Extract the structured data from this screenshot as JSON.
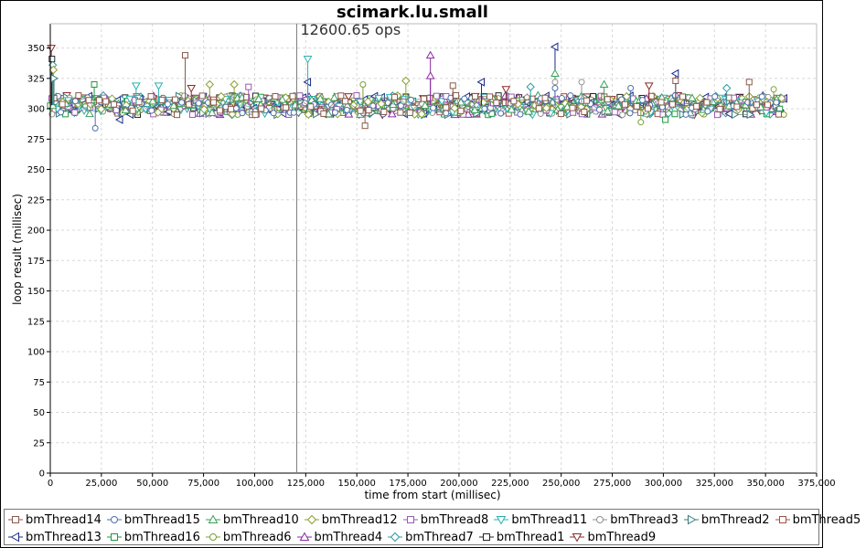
{
  "chart_data": {
    "type": "scatter",
    "title": "scimark.lu.small",
    "annotation": "12600.65 ops",
    "marker_line_x": 120600,
    "xlabel": "time from start (millisec)",
    "ylabel": "loop result (millisec)",
    "xlim": [
      0,
      375000
    ],
    "ylim": [
      0,
      370
    ],
    "x_ticks": [
      "0",
      "25,000",
      "50,000",
      "75,000",
      "100,000",
      "125,000",
      "150,000",
      "175,000",
      "200,000",
      "225,000",
      "250,000",
      "275,000",
      "300,000",
      "325,000",
      "350,000",
      "375,000"
    ],
    "y_ticks": [
      "0",
      "25",
      "50",
      "75",
      "100",
      "125",
      "150",
      "175",
      "200",
      "225",
      "250",
      "275",
      "300",
      "325",
      "350"
    ],
    "grid": true,
    "legend_position": "bottom",
    "x_range_data": [
      0,
      360000
    ],
    "typical_y": 303,
    "series": [
      {
        "name": "bmThread14",
        "marker": "square",
        "color": "#8b5a4a"
      },
      {
        "name": "bmThread15",
        "marker": "circle",
        "color": "#4a6fb0"
      },
      {
        "name": "bmThread10",
        "marker": "triangle-up",
        "color": "#3aa05a"
      },
      {
        "name": "bmThread12",
        "marker": "diamond",
        "color": "#8aa030"
      },
      {
        "name": "bmThread8",
        "marker": "square",
        "color": "#9a5ab0"
      },
      {
        "name": "bmThread11",
        "marker": "triangle-down",
        "color": "#2ab0b0"
      },
      {
        "name": "bmThread3",
        "marker": "circle",
        "color": "#909090"
      },
      {
        "name": "bmThread2",
        "marker": "triangle-right",
        "color": "#3a7a7a"
      },
      {
        "name": "bmThread5",
        "marker": "square",
        "color": "#a0504a"
      },
      {
        "name": "bmThread13",
        "marker": "triangle-left",
        "color": "#1a2a8a"
      },
      {
        "name": "bmThread16",
        "marker": "square",
        "color": "#1a9a3a"
      },
      {
        "name": "bmThread6",
        "marker": "circle",
        "color": "#7aa030"
      },
      {
        "name": "bmThread4",
        "marker": "triangle-up",
        "color": "#8a2aa0"
      },
      {
        "name": "bmThread7",
        "marker": "diamond",
        "color": "#2a9aa0"
      },
      {
        "name": "bmThread1",
        "marker": "square",
        "color": "#222222"
      },
      {
        "name": "bmThread9",
        "marker": "triangle-down",
        "color": "#8a2a2a"
      }
    ],
    "outliers": [
      {
        "series": "bmThread9",
        "x": 500,
        "y": 350
      },
      {
        "series": "bmThread1",
        "x": 800,
        "y": 341
      },
      {
        "series": "bmThread7",
        "x": 1200,
        "y": 336
      },
      {
        "series": "bmThread12",
        "x": 1500,
        "y": 332
      },
      {
        "series": "bmThread2",
        "x": 1800,
        "y": 325
      },
      {
        "series": "bmThread16",
        "x": 21500,
        "y": 320
      },
      {
        "series": "bmThread15",
        "x": 22000,
        "y": 284
      },
      {
        "series": "bmThread13",
        "x": 34000,
        "y": 291
      },
      {
        "series": "bmThread11",
        "x": 42000,
        "y": 319
      },
      {
        "series": "bmThread11",
        "x": 53000,
        "y": 319
      },
      {
        "series": "bmThread14",
        "x": 66000,
        "y": 344
      },
      {
        "series": "bmThread9",
        "x": 69000,
        "y": 317
      },
      {
        "series": "bmThread12",
        "x": 78000,
        "y": 320
      },
      {
        "series": "bmThread12",
        "x": 90000,
        "y": 320
      },
      {
        "series": "bmThread8",
        "x": 97000,
        "y": 318
      },
      {
        "series": "bmThread13",
        "x": 126000,
        "y": 322
      },
      {
        "series": "bmThread11",
        "x": 126000,
        "y": 341
      },
      {
        "series": "bmThread6",
        "x": 153000,
        "y": 320
      },
      {
        "series": "bmThread14",
        "x": 154000,
        "y": 286
      },
      {
        "series": "bmThread12",
        "x": 174000,
        "y": 323
      },
      {
        "series": "bmThread4",
        "x": 186000,
        "y": 344
      },
      {
        "series": "bmThread4",
        "x": 186000,
        "y": 327
      },
      {
        "series": "bmThread14",
        "x": 197000,
        "y": 319
      },
      {
        "series": "bmThread13",
        "x": 211000,
        "y": 322
      },
      {
        "series": "bmThread9",
        "x": 223000,
        "y": 316
      },
      {
        "series": "bmThread7",
        "x": 235000,
        "y": 318
      },
      {
        "series": "bmThread13",
        "x": 247000,
        "y": 351
      },
      {
        "series": "bmThread10",
        "x": 247000,
        "y": 329
      },
      {
        "series": "bmThread3",
        "x": 247000,
        "y": 322
      },
      {
        "series": "bmThread15",
        "x": 247000,
        "y": 317
      },
      {
        "series": "bmThread3",
        "x": 260000,
        "y": 322
      },
      {
        "series": "bmThread10",
        "x": 271000,
        "y": 320
      },
      {
        "series": "bmThread15",
        "x": 284000,
        "y": 317
      },
      {
        "series": "bmThread6",
        "x": 289000,
        "y": 289
      },
      {
        "series": "bmThread9",
        "x": 293000,
        "y": 319
      },
      {
        "series": "bmThread16",
        "x": 301000,
        "y": 291
      },
      {
        "series": "bmThread13",
        "x": 306000,
        "y": 329
      },
      {
        "series": "bmThread14",
        "x": 306000,
        "y": 323
      },
      {
        "series": "bmThread7",
        "x": 331000,
        "y": 317
      },
      {
        "series": "bmThread14",
        "x": 342000,
        "y": 322
      },
      {
        "series": "bmThread6",
        "x": 354000,
        "y": 316
      }
    ]
  }
}
